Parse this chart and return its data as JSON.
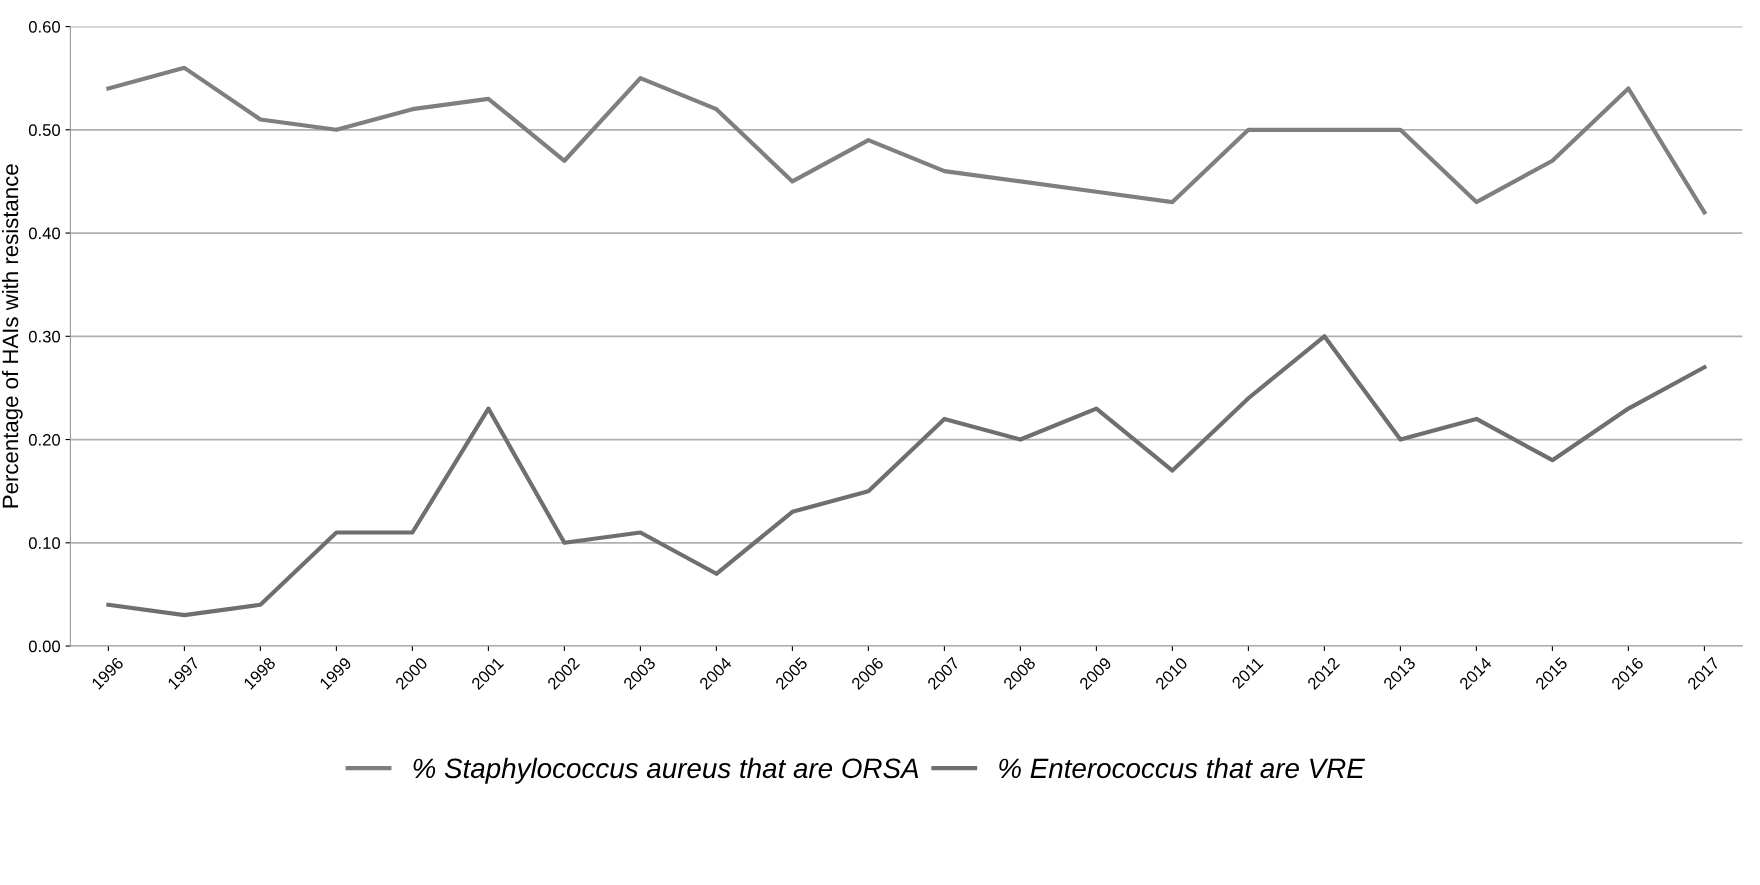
{
  "chart_data": {
    "type": "line",
    "ylabel": "Percentage of HAIs with resistance",
    "categories": [
      "1996",
      "1997",
      "1998",
      "1999",
      "2000",
      "2001",
      "2002",
      "2003",
      "2004",
      "2005",
      "2006",
      "2007",
      "2008",
      "2009",
      "2010",
      "2011",
      "2012",
      "2013",
      "2014",
      "2015",
      "2016",
      "2017"
    ],
    "series": [
      {
        "name": "% Staphylococcus aureus that are ORSA",
        "color": "#7f7f7f",
        "values": [
          0.54,
          0.56,
          0.51,
          0.5,
          0.52,
          0.53,
          0.47,
          0.55,
          0.52,
          0.45,
          0.49,
          0.46,
          0.45,
          0.44,
          0.43,
          0.5,
          0.5,
          0.5,
          0.43,
          0.47,
          0.54,
          0.42
        ]
      },
      {
        "name": "% Enterococcus that are VRE",
        "color": "#6f6f6f",
        "values": [
          0.04,
          0.03,
          0.04,
          0.11,
          0.11,
          0.23,
          0.1,
          0.11,
          0.07,
          0.13,
          0.15,
          0.22,
          0.2,
          0.23,
          0.17,
          0.24,
          0.3,
          0.2,
          0.22,
          0.18,
          0.23,
          0.27
        ]
      }
    ],
    "ylim": [
      0,
      0.6
    ],
    "yticks": [
      {
        "value": 0,
        "label": "0.00"
      },
      {
        "value": 0.1,
        "label": "0.10"
      },
      {
        "value": 0.2,
        "label": "0.20"
      },
      {
        "value": 0.3,
        "label": "0.30"
      },
      {
        "value": 0.4,
        "label": "0.40"
      },
      {
        "value": 0.5,
        "label": "0.50"
      },
      {
        "value": 0.6,
        "label": "0.60"
      }
    ],
    "grid": "y",
    "legend": "bottom",
    "marker": "none",
    "line_style": "solid"
  }
}
